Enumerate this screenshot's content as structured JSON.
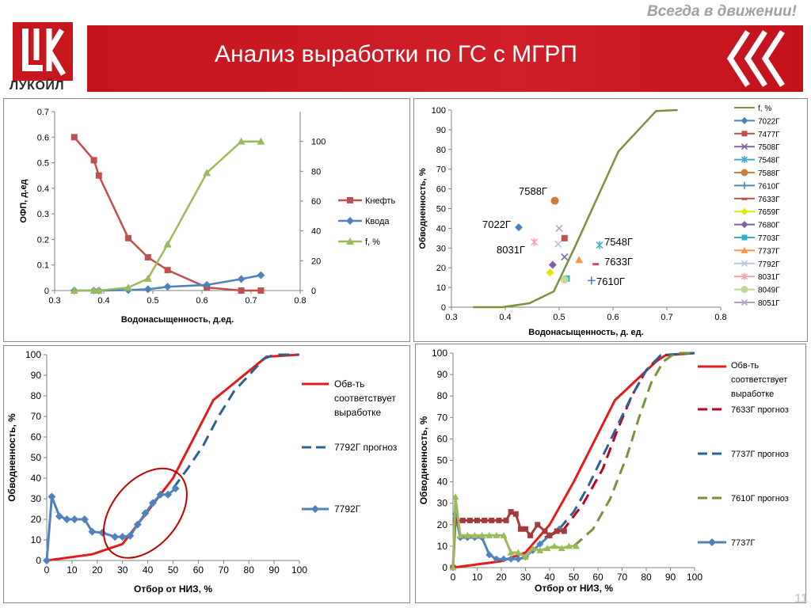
{
  "header": {
    "slogan": "Всегда в движении!",
    "title": "Анализ выработки по ГС с МГРП",
    "logo_text": "ЛУКОЙЛ",
    "page_number": "11",
    "brand_color": "#c8161e"
  },
  "chart_data": [
    {
      "id": "tl",
      "type": "line",
      "xlabel": "Водонасыщенность,  д.ед.",
      "ylabel": "ОФП, д.ед",
      "xlim": [
        0.3,
        0.8
      ],
      "ylim": [
        0,
        0.7
      ],
      "y2lim": [
        0,
        120
      ],
      "xticks": [
        "0.3",
        "0.4",
        "0.5",
        "0.6",
        "0.7",
        "0.8"
      ],
      "yticks": [
        "0",
        "0.1",
        "0.2",
        "0.3",
        "0.4",
        "0.5",
        "0.6",
        "0.7"
      ],
      "y2ticks": [
        "0",
        "20",
        "40",
        "60",
        "80",
        "100"
      ],
      "legend_position": "right",
      "series": [
        {
          "name": "Кнефть",
          "axis": "y",
          "color": "#c0504d",
          "marker": "square",
          "points": [
            [
              0.34,
              0.6
            ],
            [
              0.38,
              0.51
            ],
            [
              0.39,
              0.45
            ],
            [
              0.45,
              0.205
            ],
            [
              0.49,
              0.13
            ],
            [
              0.53,
              0.08
            ],
            [
              0.61,
              0.012
            ],
            [
              0.68,
              0.0
            ],
            [
              0.72,
              0.0
            ]
          ]
        },
        {
          "name": "Квода",
          "axis": "y",
          "color": "#4f81bd",
          "marker": "diamond",
          "points": [
            [
              0.34,
              0.0
            ],
            [
              0.38,
              0.0
            ],
            [
              0.39,
              0.0
            ],
            [
              0.45,
              0.002
            ],
            [
              0.49,
              0.005
            ],
            [
              0.53,
              0.015
            ],
            [
              0.61,
              0.022
            ],
            [
              0.68,
              0.045
            ],
            [
              0.72,
              0.06
            ]
          ]
        },
        {
          "name": "f, %",
          "axis": "y2",
          "color": "#9bbb59",
          "marker": "triangle",
          "points": [
            [
              0.34,
              0
            ],
            [
              0.38,
              0
            ],
            [
              0.39,
              0
            ],
            [
              0.45,
              2
            ],
            [
              0.49,
              8
            ],
            [
              0.53,
              31
            ],
            [
              0.61,
              79
            ],
            [
              0.68,
              100
            ],
            [
              0.72,
              100
            ]
          ]
        }
      ]
    },
    {
      "id": "tr",
      "type": "scatter",
      "xlabel": "Водонасыщенность,  д. ед.",
      "ylabel": "Обводненность, %",
      "xlim": [
        0.3,
        0.8
      ],
      "ylim": [
        0,
        100
      ],
      "xticks": [
        "0.3",
        "0.4",
        "0.5",
        "0.6",
        "0.7",
        "0.8"
      ],
      "yticks": [
        "0",
        "10",
        "20",
        "30",
        "40",
        "50",
        "60",
        "70",
        "80",
        "90",
        "100"
      ],
      "legend_position": "right",
      "curve": {
        "name": "f, %",
        "color": "#77933c",
        "points": [
          [
            0.34,
            0
          ],
          [
            0.395,
            0
          ],
          [
            0.445,
            2
          ],
          [
            0.49,
            8
          ],
          [
            0.53,
            31
          ],
          [
            0.61,
            79
          ],
          [
            0.68,
            99.5
          ],
          [
            0.72,
            100
          ]
        ]
      },
      "points": [
        {
          "name": "7022Г",
          "marker": "diamond",
          "color": "#4f81bd",
          "x": 0.425,
          "y": 40.5
        },
        {
          "name": "7477Г",
          "marker": "square",
          "color": "#c0504d",
          "x": 0.51,
          "y": 35
        },
        {
          "name": "7508Г",
          "marker": "x",
          "color": "#8064a2",
          "x": 0.51,
          "y": 25.5
        },
        {
          "name": "7548Г",
          "marker": "star",
          "color": "#4bacc6",
          "x": 0.575,
          "y": 31.5
        },
        {
          "name": "7588Г",
          "marker": "circle",
          "color": "#d07c3c",
          "x": 0.492,
          "y": 54
        },
        {
          "name": "7610Г",
          "marker": "plus",
          "color": "#4f81bd",
          "x": 0.56,
          "y": 13.5
        },
        {
          "name": "7633Г",
          "marker": "dash",
          "color": "#c0504d",
          "x": 0.568,
          "y": 22
        },
        {
          "name": "7659Г",
          "marker": "diamond",
          "color": "#e3e800",
          "x": 0.483,
          "y": 17.5
        },
        {
          "name": "7680Г",
          "marker": "diamond",
          "color": "#7f5fa3",
          "x": 0.488,
          "y": 21.5
        },
        {
          "name": "7703Г",
          "marker": "square",
          "color": "#31b2c8",
          "x": 0.514,
          "y": 14.5
        },
        {
          "name": "7737Г",
          "marker": "triangle",
          "color": "#f79646",
          "x": 0.537,
          "y": 24
        },
        {
          "name": "7792Г",
          "marker": "x",
          "color": "#b4c6e7",
          "x": 0.498,
          "y": 32
        },
        {
          "name": "8031Г",
          "marker": "star",
          "color": "#f4a6a6",
          "x": 0.454,
          "y": 33
        },
        {
          "name": "8049Г",
          "marker": "circle",
          "color": "#c3d69b",
          "x": 0.51,
          "y": 14
        },
        {
          "name": "8051Г",
          "marker": "x",
          "color": "#b3a2c7",
          "x": 0.5,
          "y": 40
        }
      ],
      "annotations": [
        "7588Г",
        "7022Г",
        "8031Г",
        "7548Г",
        "7633Г",
        "7610Г"
      ]
    },
    {
      "id": "bl",
      "type": "line",
      "xlabel": "Отбор от НИЗ, %",
      "ylabel": "Обводненность, %",
      "xlim": [
        0,
        100
      ],
      "ylim": [
        0,
        100
      ],
      "xticks": [
        "0",
        "10",
        "20",
        "30",
        "40",
        "50",
        "60",
        "70",
        "80",
        "90",
        "100"
      ],
      "yticks": [
        "0",
        "10",
        "20",
        "30",
        "40",
        "50",
        "60",
        "70",
        "80",
        "90",
        "100"
      ],
      "legend_position": "right",
      "series": [
        {
          "name": "Обв-ть соответствует выработке",
          "color": "#e01c1c",
          "style": "solid",
          "points": [
            [
              0,
              0
            ],
            [
              18,
              3
            ],
            [
              30,
              8
            ],
            [
              50,
              40
            ],
            [
              66,
              78
            ],
            [
              87,
              99
            ],
            [
              100,
              100
            ]
          ]
        },
        {
          "name": "7792Г прогноз",
          "color": "#2e5f96",
          "style": "dashed",
          "points": [
            [
              50,
              35
            ],
            [
              56,
              45
            ],
            [
              62,
              56
            ],
            [
              68,
              70
            ],
            [
              74,
              82
            ],
            [
              80,
              90
            ],
            [
              86,
              98
            ],
            [
              90,
              100
            ],
            [
              100,
              100
            ]
          ]
        },
        {
          "name": "7792Г",
          "color": "#4f81bd",
          "style": "marker-line",
          "points": [
            [
              0,
              0
            ],
            [
              2,
              31
            ],
            [
              5,
              21.5
            ],
            [
              8,
              20
            ],
            [
              11,
              20
            ],
            [
              15,
              20
            ],
            [
              18,
              14
            ],
            [
              22,
              13.5
            ],
            [
              27,
              11.5
            ],
            [
              30,
              11.5
            ],
            [
              33,
              12
            ],
            [
              36,
              17.5
            ],
            [
              39,
              23
            ],
            [
              42,
              28
            ],
            [
              45,
              32
            ],
            [
              48,
              32
            ],
            [
              51,
              35
            ]
          ]
        }
      ],
      "highlight_ellipse": {
        "center": [
          39,
          23
        ],
        "rx": 13,
        "ry": 25,
        "color": "#c00000"
      }
    },
    {
      "id": "br",
      "type": "line",
      "xlabel": "Отбор от НИЗ, %",
      "ylabel": "Обводненность, %",
      "xlim": [
        0,
        100
      ],
      "ylim": [
        0,
        100
      ],
      "xticks": [
        "0",
        "10",
        "20",
        "30",
        "40",
        "50",
        "60",
        "70",
        "80",
        "90",
        "100"
      ],
      "yticks": [
        "0",
        "10",
        "20",
        "30",
        "40",
        "50",
        "60",
        "70",
        "80",
        "90",
        "100"
      ],
      "legend_position": "right",
      "series": [
        {
          "name": "Обв-ть соответствует выработке",
          "color": "#e01c1c",
          "style": "solid",
          "points": [
            [
              0,
              0
            ],
            [
              20,
              3
            ],
            [
              30,
              7
            ],
            [
              40,
              20
            ],
            [
              50,
              40
            ],
            [
              67,
              78
            ],
            [
              84,
              96
            ],
            [
              88,
              99
            ],
            [
              100,
              100
            ]
          ]
        },
        {
          "name": "7633Г прогноз",
          "color": "#c0001c",
          "style": "dashed",
          "points": [
            [
              38,
              14
            ],
            [
              46,
              18
            ],
            [
              54,
              30
            ],
            [
              62,
              46
            ],
            [
              68,
              64
            ],
            [
              74,
              80
            ],
            [
              80,
              92
            ],
            [
              86,
              99
            ],
            [
              100,
              100
            ]
          ]
        },
        {
          "name": "7737Г прогноз",
          "color": "#2e5f96",
          "style": "dashed",
          "points": [
            [
              44,
              18
            ],
            [
              50,
              26
            ],
            [
              56,
              38
            ],
            [
              62,
              52
            ],
            [
              68,
              66
            ],
            [
              74,
              80
            ],
            [
              80,
              92
            ],
            [
              86,
              99
            ],
            [
              100,
              100
            ]
          ]
        },
        {
          "name": "7610Г прогноз",
          "color": "#77933c",
          "style": "dashed",
          "points": [
            [
              50,
              10
            ],
            [
              58,
              18
            ],
            [
              65,
              32
            ],
            [
              72,
              52
            ],
            [
              77,
              70
            ],
            [
              82,
              86
            ],
            [
              87,
              96
            ],
            [
              92,
              100
            ],
            [
              100,
              100
            ]
          ]
        },
        {
          "name": "7737Г",
          "color": "#4f81bd",
          "style": "marker-line",
          "points": [
            [
              0,
              0
            ],
            [
              1,
              25
            ],
            [
              3,
              14
            ],
            [
              6,
              14
            ],
            [
              9,
              14
            ],
            [
              12,
              14
            ],
            [
              15,
              6
            ],
            [
              18,
              4
            ],
            [
              21,
              4
            ],
            [
              24,
              4
            ],
            [
              27,
              4
            ],
            [
              30,
              5
            ],
            [
              33,
              8
            ],
            [
              36,
              11
            ],
            [
              40,
              15
            ],
            [
              44,
              18
            ]
          ]
        },
        {
          "name": "7633Г",
          "color": "#a23c3c",
          "style": "marker-line",
          "points": [
            [
              0,
              0
            ],
            [
              1,
              22
            ],
            [
              4,
              22
            ],
            [
              7,
              22
            ],
            [
              10,
              22
            ],
            [
              13,
              22
            ],
            [
              16,
              22
            ],
            [
              19,
              22
            ],
            [
              22,
              22
            ],
            [
              24,
              26
            ],
            [
              26,
              25
            ],
            [
              28,
              18
            ],
            [
              30,
              18
            ],
            [
              32,
              15
            ],
            [
              35,
              20
            ],
            [
              38,
              17
            ],
            [
              40,
              15
            ],
            [
              43,
              17
            ],
            [
              46,
              17
            ]
          ]
        },
        {
          "name": "7610Г",
          "color": "#9bbb59",
          "style": "marker-line",
          "points": [
            [
              0,
              0
            ],
            [
              1,
              33
            ],
            [
              3,
              15
            ],
            [
              6,
              15
            ],
            [
              9,
              15
            ],
            [
              12,
              15
            ],
            [
              15,
              15
            ],
            [
              18,
              15
            ],
            [
              21,
              15
            ],
            [
              24,
              7
            ],
            [
              27,
              7
            ],
            [
              30,
              5
            ],
            [
              33,
              9
            ],
            [
              36,
              8
            ],
            [
              39,
              9
            ],
            [
              42,
              10
            ],
            [
              45,
              9
            ],
            [
              48,
              10
            ],
            [
              51,
              10
            ]
          ]
        }
      ]
    }
  ]
}
